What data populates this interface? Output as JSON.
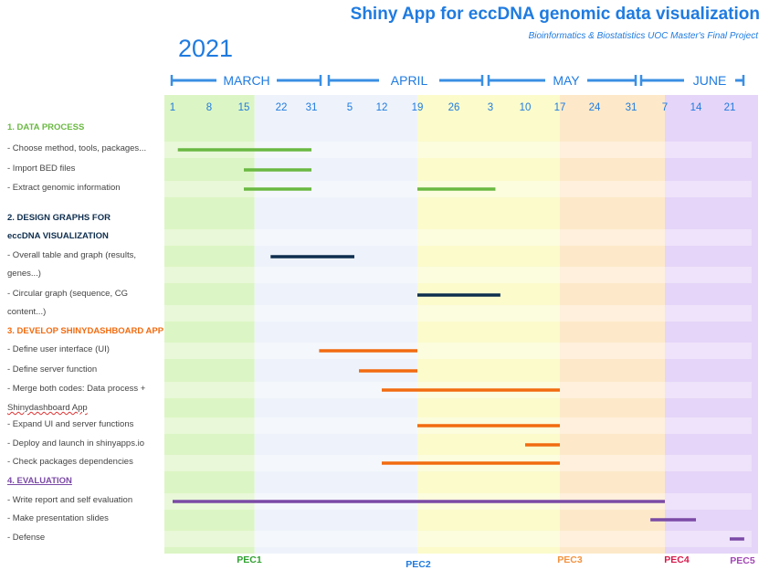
{
  "header": {
    "title": "Shiny App for eccDNA genomic data visualization",
    "subtitle": "Bioinformatics & Biostatistics UOC Master's Final Project",
    "year": "2021"
  },
  "colors": {
    "accent": "#1f7be0",
    "data_process": "#6ab842",
    "design_graphs": "#0e2e4e",
    "develop_app": "#f26b10",
    "evaluation": "#7b4aa6",
    "pec1": "#2fa12f",
    "pec2": "#1f7be0",
    "pec3": "#f5923e",
    "pec4": "#d7194b",
    "pec5": "#a347b5"
  },
  "chart_data": {
    "type": "gantt",
    "months": [
      "MARCH",
      "APRIL",
      "MAY",
      "JUNE"
    ],
    "week_ticks": [
      {
        "label": "1",
        "date": "2021-03-01"
      },
      {
        "label": "8",
        "date": "2021-03-08"
      },
      {
        "label": "15",
        "date": "2021-03-15"
      },
      {
        "label": "22",
        "date": "2021-03-22"
      },
      {
        "label": "31",
        "date": "2021-03-31"
      },
      {
        "label": "5",
        "date": "2021-04-05"
      },
      {
        "label": "12",
        "date": "2021-04-12"
      },
      {
        "label": "19",
        "date": "2021-04-19"
      },
      {
        "label": "26",
        "date": "2021-04-26"
      },
      {
        "label": "3",
        "date": "2021-05-03"
      },
      {
        "label": "10",
        "date": "2021-05-10"
      },
      {
        "label": "17",
        "date": "2021-05-17"
      },
      {
        "label": "24",
        "date": "2021-05-24"
      },
      {
        "label": "31",
        "date": "2021-05-31"
      },
      {
        "label": "7",
        "date": "2021-06-07"
      },
      {
        "label": "14",
        "date": "2021-06-14"
      },
      {
        "label": "21",
        "date": "2021-06-21"
      }
    ],
    "phases": [
      {
        "label": "PEC1",
        "start": "2021-03-01",
        "end": "2021-03-17",
        "color": "#dcf5c4"
      },
      {
        "label": "PEC2",
        "start": "2021-03-17",
        "end": "2021-04-19",
        "color": "#eef3fb"
      },
      {
        "label": "PEC3",
        "start": "2021-04-19",
        "end": "2021-05-17",
        "color": "#fbfbcc"
      },
      {
        "label": "",
        "start": "2021-05-17",
        "end": "2021-06-07",
        "color": "#fde9c9"
      },
      {
        "label": "PEC4",
        "start": "2021-06-07",
        "end": "2021-06-21",
        "color": "#e5d5f8"
      },
      {
        "label": "PEC5",
        "start": "2021-06-21",
        "end": "2021-06-24",
        "color": "#e5d5f8"
      }
    ],
    "tasks": [
      {
        "label": "1. DATA PROCESS",
        "type": "section",
        "color": "#6ab842"
      },
      {
        "label": "- Choose method, tools, packages...",
        "start": "2021-03-02",
        "end": "2021-03-31",
        "color": "#6ab842"
      },
      {
        "label": "- Import BED files",
        "start": "2021-03-15",
        "end": "2021-03-31",
        "color": "#6ab842"
      },
      {
        "label": "- Extract genomic information",
        "start": "2021-03-15",
        "end": "2021-03-31",
        "start2": "2021-04-19",
        "end2": "2021-05-04",
        "color": "#6ab842"
      },
      {
        "label": "2.  DESIGN  GRAPHS FOR",
        "type": "section",
        "color": "#0e2e4e"
      },
      {
        "label": "eccDNA VISUALIZATION",
        "type": "section",
        "color": "#0e2e4e"
      },
      {
        "label": "- Overall  table and graph (results,",
        "start": "2021-03-20",
        "end": "2021-04-06",
        "color": "#0e2e4e"
      },
      {
        "label": "genes...)",
        "type": "continuation"
      },
      {
        "label": "- Circular graph (sequence, CG",
        "start": "2021-04-19",
        "end": "2021-05-05",
        "color": "#0e2e4e"
      },
      {
        "label": "content...)",
        "type": "continuation"
      },
      {
        "label": "3. DEVELOP SHINYDASHBOARD APP",
        "type": "section",
        "color": "#f26b10"
      },
      {
        "label": "- Define user interface (UI)",
        "start": "2021-04-01",
        "end": "2021-04-19",
        "color": "#f26b10"
      },
      {
        "label": "- Define server function",
        "start": "2021-04-07",
        "end": "2021-04-19",
        "color": "#f26b10"
      },
      {
        "label": "- Merge both codes: Data process +",
        "start": "2021-04-12",
        "end": "2021-05-17",
        "color": "#f26b10"
      },
      {
        "label": "Shinydashboard App",
        "type": "continuation"
      },
      {
        "label": "-  Expand UI and server functions",
        "start": "2021-04-19",
        "end": "2021-05-17",
        "color": "#f26b10"
      },
      {
        "label": "-  Deploy and launch in shinyapps.io",
        "start": "2021-05-10",
        "end": "2021-05-17",
        "color": "#f26b10"
      },
      {
        "label": "- Check packages dependencies",
        "start": "2021-04-12",
        "end": "2021-05-17",
        "color": "#f26b10"
      },
      {
        "label": "4. EVALUATION",
        "type": "section",
        "color": "#7b4aa6"
      },
      {
        "label": "- Write report  and self  evaluation",
        "start": "2021-03-01",
        "end": "2021-06-07",
        "color": "#7b4aa6"
      },
      {
        "label": "- Make presentation slides",
        "start": "2021-06-04",
        "end": "2021-06-14",
        "color": "#7b4aa6"
      },
      {
        "label": "- Defense",
        "start": "2021-06-21",
        "end": "2021-06-24",
        "color": "#7b4aa6"
      }
    ],
    "milestones": [
      {
        "label": "PEC1",
        "color": "#2fa12f"
      },
      {
        "label": "PEC2",
        "color": "#1f7be0"
      },
      {
        "label": "PEC3",
        "color": "#f5923e"
      },
      {
        "label": "PEC4",
        "color": "#d7194b"
      },
      {
        "label": "PEC5",
        "color": "#a347b5"
      }
    ]
  }
}
